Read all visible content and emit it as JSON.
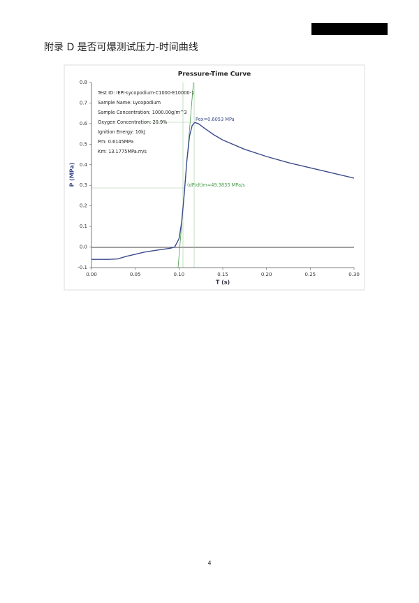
{
  "heading": "附录 D 是否可爆测试压力-时间曲线",
  "page_number": "4",
  "chart_data": {
    "type": "line",
    "title": "Pressure-Time Curve",
    "x_label": "T (s)",
    "y_label": "P (MPa)",
    "annotations": [
      "Test ID: IEPI-Lycopodium-C1000-E10000-1",
      "Sample Name: Lycopodium",
      "Sample Concentration: 1000.00g/m^3",
      "Oxygen Concentration: 20.9%",
      "Ignition Energy: 10kJ",
      "Pm: 0.6145MPa",
      "Km: 13.1775MPa.m/s"
    ],
    "peak_label": "Pex=0.6053 MPa",
    "rate_label": "(dP/dt)m=49.3835 MPa/s",
    "x": [
      0,
      0.01,
      0.02,
      0.03,
      0.04,
      0.05,
      0.06,
      0.07,
      0.08,
      0.09,
      0.095,
      0.1,
      0.103,
      0.106,
      0.109,
      0.112,
      0.115,
      0.118,
      0.122,
      0.13,
      0.14,
      0.15,
      0.175,
      0.2,
      0.225,
      0.25,
      0.275,
      0.3
    ],
    "series": [
      {
        "color": "#3b4a8c",
        "values": [
          -0.06,
          -0.06,
          -0.06,
          -0.058,
          -0.045,
          -0.035,
          -0.025,
          -0.018,
          -0.012,
          -0.006,
          0,
          0.04,
          0.12,
          0.26,
          0.42,
          0.54,
          0.59,
          0.6053,
          0.6,
          0.575,
          0.545,
          0.52,
          0.475,
          0.44,
          0.41,
          0.385,
          0.36,
          0.335
        ]
      }
    ],
    "xlim": [
      0,
      0.3
    ],
    "ylim": [
      -0.1,
      0.8
    ],
    "xticks": [
      {
        "value": 0,
        "label": "0.00"
      },
      0.05,
      {
        "value": 0.1,
        "label": "0.10"
      },
      0.15,
      {
        "value": 0.2,
        "label": "0.20"
      },
      0.25,
      {
        "value": 0.3,
        "label": "0.30"
      }
    ],
    "yticks": [
      -0.1,
      {
        "value": 0,
        "label": "0.0"
      },
      0.1,
      0.2,
      0.3,
      0.4,
      0.5,
      0.6,
      0.7,
      0.8
    ]
  }
}
